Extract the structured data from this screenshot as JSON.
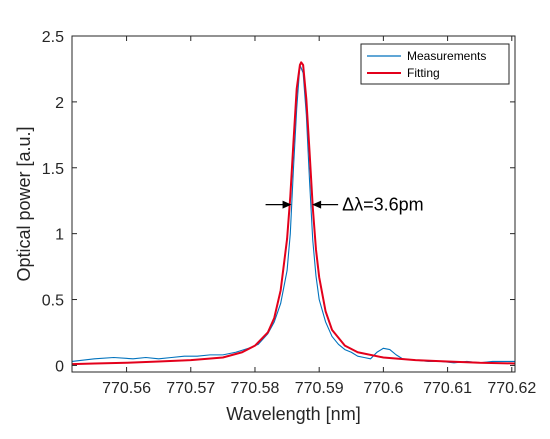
{
  "chart_data": {
    "type": "line",
    "xlabel": "Wavelength [nm]",
    "ylabel": "Optical power [a.u.]",
    "xlim": [
      770.5515,
      770.6205
    ],
    "ylim": [
      -0.05,
      2.5
    ],
    "x_ticks": [
      770.56,
      770.57,
      770.58,
      770.59,
      770.6,
      770.61,
      770.62
    ],
    "x_tick_labels": [
      "770.56",
      "770.57",
      "770.58",
      "770.59",
      "770.6",
      "770.61",
      "770.62"
    ],
    "y_ticks": [
      0,
      0.5,
      1,
      1.5,
      2,
      2.5
    ],
    "y_tick_labels": [
      "0",
      "0.5",
      "1",
      "1.5",
      "2",
      "2.5"
    ],
    "grid": false,
    "legend_position": "top-right",
    "series": [
      {
        "name": "Measurements",
        "color": "#0072BD",
        "x": [
          770.5515,
          770.555,
          770.558,
          770.561,
          770.563,
          770.565,
          770.567,
          770.569,
          770.571,
          770.573,
          770.575,
          770.577,
          770.579,
          770.5805,
          770.582,
          770.583,
          770.584,
          770.585,
          770.5855,
          770.586,
          770.5865,
          770.587,
          770.5875,
          770.588,
          770.5885,
          770.589,
          770.5895,
          770.59,
          770.591,
          770.592,
          770.593,
          770.594,
          770.595,
          770.596,
          770.597,
          770.598,
          770.599,
          770.6,
          770.601,
          770.602,
          770.603,
          770.605,
          770.607,
          770.609,
          770.611,
          770.613,
          770.615,
          770.617,
          770.6205
        ],
        "y": [
          0.03,
          0.05,
          0.06,
          0.05,
          0.06,
          0.05,
          0.06,
          0.07,
          0.07,
          0.08,
          0.08,
          0.1,
          0.13,
          0.16,
          0.24,
          0.33,
          0.47,
          0.72,
          1.0,
          1.5,
          1.95,
          2.28,
          2.22,
          1.9,
          1.4,
          0.95,
          0.68,
          0.5,
          0.33,
          0.22,
          0.16,
          0.12,
          0.1,
          0.07,
          0.06,
          0.05,
          0.1,
          0.13,
          0.12,
          0.08,
          0.05,
          0.04,
          0.03,
          0.03,
          0.02,
          0.03,
          0.02,
          0.03,
          0.03
        ]
      },
      {
        "name": "Fitting",
        "color": "#E3001B",
        "function": "lorentzian",
        "x": [
          770.5515,
          770.555,
          770.56,
          770.565,
          770.57,
          770.575,
          770.578,
          770.58,
          770.582,
          770.583,
          770.584,
          770.585,
          770.5855,
          770.586,
          770.5865,
          770.587,
          770.5872,
          770.5875,
          770.588,
          770.5885,
          770.589,
          770.5895,
          770.59,
          770.591,
          770.592,
          770.594,
          770.596,
          770.6,
          770.605,
          770.61,
          770.615,
          770.6205
        ],
        "y": [
          0.01,
          0.015,
          0.02,
          0.03,
          0.04,
          0.06,
          0.1,
          0.15,
          0.25,
          0.36,
          0.57,
          0.96,
          1.28,
          1.7,
          2.1,
          2.28,
          2.3,
          2.28,
          2.02,
          1.62,
          1.2,
          0.88,
          0.67,
          0.41,
          0.27,
          0.15,
          0.1,
          0.06,
          0.04,
          0.03,
          0.02,
          0.015
        ]
      }
    ],
    "annotations": [
      {
        "text": "Δλ=3.6pm",
        "x_left_arrow_tip": 770.5857,
        "x_right_arrow_tip": 770.5889,
        "y": 1.22
      }
    ]
  }
}
